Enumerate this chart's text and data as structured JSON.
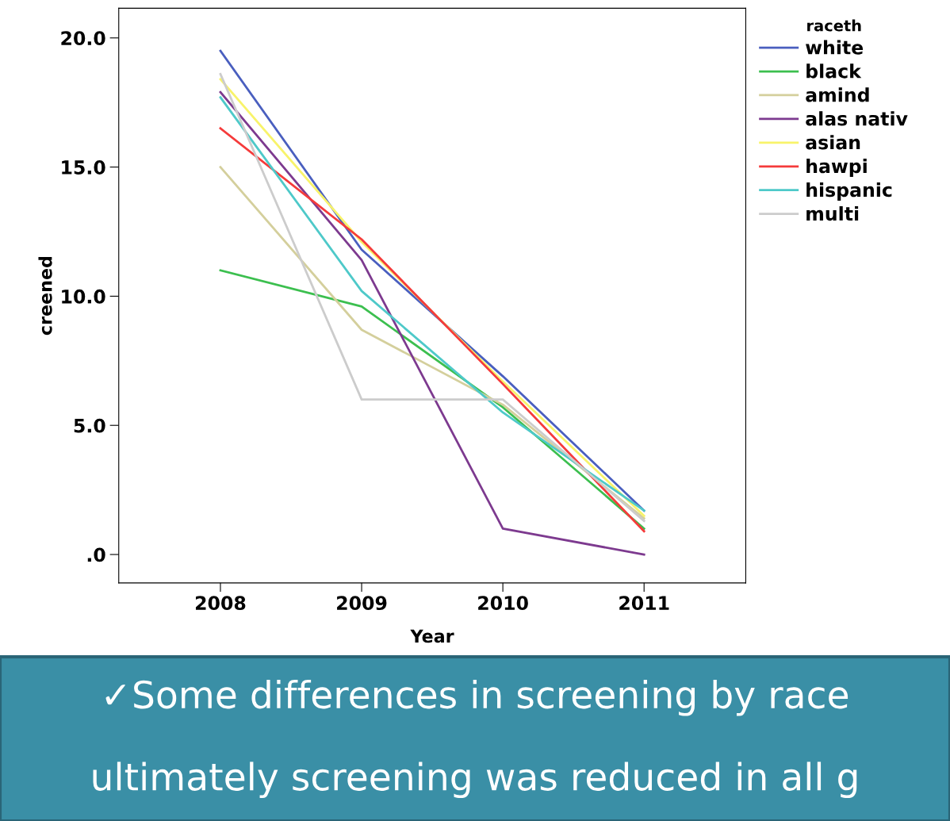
{
  "chart_data": {
    "type": "line",
    "xlabel": "Year",
    "ylabel": "creened",
    "legend_title": "raceth",
    "x": [
      2008,
      2009,
      2010,
      2011
    ],
    "xlim": [
      2007.28,
      2011.72
    ],
    "xticks": [
      2008,
      2009,
      2010,
      2011
    ],
    "ylim": [
      -1.1,
      21.15
    ],
    "yticks": [
      {
        "value": 0,
        "label": ".0"
      },
      {
        "value": 5,
        "label": "5.0"
      },
      {
        "value": 10,
        "label": "10.0"
      },
      {
        "value": 15,
        "label": "15.0"
      },
      {
        "value": 20,
        "label": "20.0"
      }
    ],
    "series": [
      {
        "name": "white",
        "color": "#4a5fbf",
        "values": [
          19.5,
          11.8,
          6.9,
          1.7
        ]
      },
      {
        "name": "black",
        "color": "#3cbf4f",
        "values": [
          11.0,
          9.6,
          5.7,
          1.0
        ]
      },
      {
        "name": "amind",
        "color": "#d4cf9c",
        "values": [
          15.0,
          8.7,
          5.8,
          1.4
        ]
      },
      {
        "name": "alas nativ",
        "color": "#7d3a8f",
        "values": [
          17.9,
          11.4,
          1.0,
          0.0
        ]
      },
      {
        "name": "asian",
        "color": "#f8f36a",
        "values": [
          18.4,
          12.1,
          6.7,
          1.5
        ]
      },
      {
        "name": "hawpi",
        "color": "#f53b3b",
        "values": [
          16.5,
          12.2,
          6.6,
          0.9
        ]
      },
      {
        "name": "hispanic",
        "color": "#4ec9c9",
        "values": [
          17.7,
          10.2,
          5.5,
          1.7
        ]
      },
      {
        "name": "multi",
        "color": "#cccccc",
        "values": [
          18.6,
          6.0,
          6.0,
          1.3
        ]
      }
    ],
    "legend": "right",
    "grid": false,
    "marker": "none",
    "line_style": "solid",
    "annotations": [
      "✓Some differences in screening by race",
      "ultimately screening was reduced in all g"
    ]
  }
}
